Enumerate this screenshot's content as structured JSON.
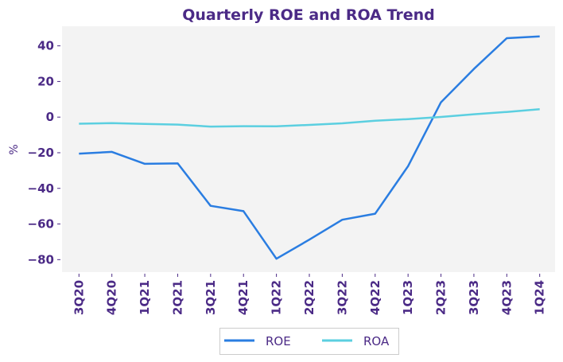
{
  "chart_data": {
    "type": "line",
    "title": "Quarterly ROE and ROA Trend",
    "xlabel": "",
    "ylabel": "%",
    "categories": [
      "3Q20",
      "4Q20",
      "1Q21",
      "2Q21",
      "3Q21",
      "4Q21",
      "1Q22",
      "2Q22",
      "3Q22",
      "4Q22",
      "1Q23",
      "2Q23",
      "3Q23",
      "4Q23",
      "1Q24"
    ],
    "ylim": [
      -87,
      51
    ],
    "yticks": [
      40,
      20,
      0,
      -20,
      -40,
      -60,
      -80
    ],
    "ytick_labels": [
      "40",
      "20",
      "0",
      "−20",
      "−40",
      "−60",
      "−80"
    ],
    "grid": false,
    "legend_position": "bottom-center",
    "series": [
      {
        "name": "ROE",
        "color": "#2a7de1",
        "values": [
          -20.5,
          -19.5,
          -26.2,
          -26.0,
          -49.8,
          -52.8,
          -79.5,
          -68.8,
          -57.6,
          -54.2,
          -27.5,
          8.3,
          27.0,
          44.3,
          45.3
        ]
      },
      {
        "name": "ROA",
        "color": "#5bcfe0",
        "values": [
          -3.7,
          -3.4,
          -3.8,
          -4.2,
          -5.3,
          -5.1,
          -5.2,
          -4.4,
          -3.5,
          -2.0,
          -1.1,
          0.1,
          1.6,
          2.9,
          4.4
        ]
      }
    ]
  }
}
